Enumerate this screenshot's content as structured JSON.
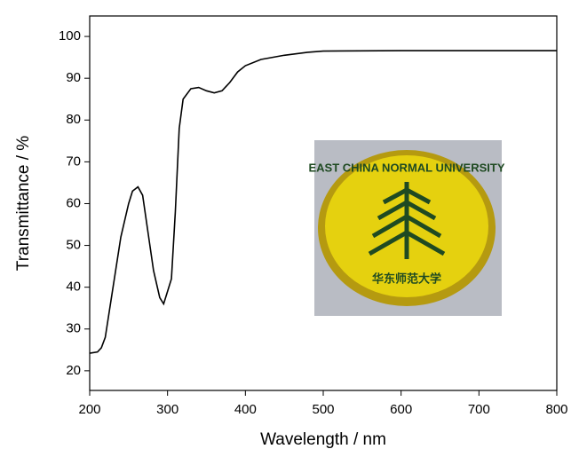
{
  "chart_data": {
    "type": "line",
    "x_label": "Wavelength / nm",
    "y_label": "Transmittance / %",
    "x": [
      200,
      210,
      215,
      220,
      230,
      240,
      250,
      255,
      262,
      268,
      275,
      282,
      290,
      295,
      300,
      305,
      310,
      315,
      320,
      330,
      340,
      350,
      360,
      370,
      380,
      390,
      400,
      420,
      450,
      480,
      500,
      600,
      700,
      800
    ],
    "series": [
      {
        "color": "#000000",
        "values": [
          24.2,
          24.5,
          25.5,
          28,
          40,
          52,
          60,
          63,
          64,
          62,
          53,
          44,
          37.5,
          36,
          39,
          42,
          58,
          78,
          85,
          87.5,
          87.8,
          87,
          86.5,
          87,
          89,
          91.5,
          93,
          94.5,
          95.5,
          96.2,
          96.5,
          96.6,
          96.6,
          96.6
        ]
      }
    ],
    "xlim": [
      200,
      800
    ],
    "xticks": [
      200,
      300,
      400,
      500,
      600,
      700,
      800
    ],
    "ylim": [
      15.3,
      104.9
    ],
    "yticks": [
      20,
      30,
      40,
      50,
      60,
      70,
      80,
      90,
      100
    ],
    "inset_texts": [
      "EAST CHINA NORMAL UNIVERSITY",
      "华东师范大学"
    ]
  }
}
